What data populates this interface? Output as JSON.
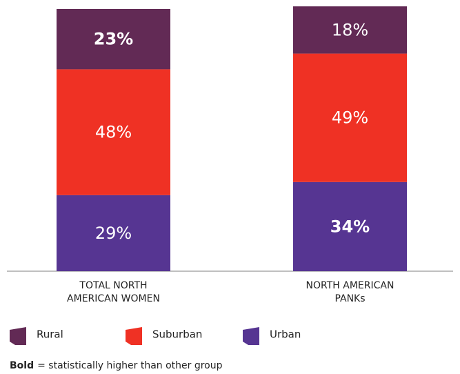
{
  "chart_data": {
    "type": "stacked_bar",
    "categories": [
      "TOTAL NORTH\nAMERICAN WOMEN",
      "NORTH AMERICAN\nPANKs"
    ],
    "series": [
      {
        "name": "Urban",
        "color": "#563592",
        "values": [
          29,
          34
        ],
        "value_labels": [
          "29%",
          "34%"
        ],
        "bold": [
          false,
          true
        ]
      },
      {
        "name": "Suburban",
        "color": "#ef3124",
        "values": [
          48,
          49
        ],
        "value_labels": [
          "48%",
          "49%"
        ],
        "bold": [
          false,
          false
        ]
      },
      {
        "name": "Rural",
        "color": "#622a55",
        "values": [
          23,
          18
        ],
        "value_labels": [
          "23%",
          "18%"
        ],
        "bold": [
          true,
          false
        ]
      }
    ],
    "legend_order": [
      "Rural",
      "Suburban",
      "Urban"
    ],
    "ylim": [
      0,
      100
    ],
    "footnote": {
      "bold": "Bold",
      "text": "= statistically higher than other group"
    }
  }
}
